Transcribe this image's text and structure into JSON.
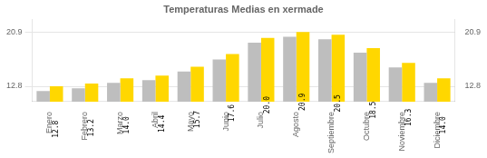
{
  "chart_data": {
    "type": "bar",
    "title": "Temperaturas Medias en xermade",
    "categories": [
      "Enero",
      "Febrero",
      "Marzo",
      "Abril",
      "Mayo",
      "Junio",
      "Julio",
      "Agosto",
      "Septiembre",
      "Octubre",
      "Noviembre",
      "Diciembre"
    ],
    "series": [
      {
        "color": "#BEBEBE",
        "values": [
          12.1,
          12.5,
          13.3,
          13.7,
          15.0,
          16.8,
          19.3,
          20.2,
          19.8,
          17.8,
          15.6,
          13.3
        ]
      },
      {
        "color": "#FFD700",
        "data_labels": true,
        "values": [
          12.8,
          13.2,
          14.0,
          14.4,
          15.7,
          17.6,
          20.0,
          20.9,
          20.5,
          18.5,
          16.3,
          14.0
        ],
        "value_labels": [
          "12.8",
          "13.2",
          "14.0",
          "14.4",
          "15.7",
          "17.6",
          "20.0",
          "20.9",
          "20.5",
          "18.5",
          "16.3",
          "14.0"
        ]
      }
    ],
    "ylim": [
      10.5,
      22.8
    ],
    "yticks": [
      12.8,
      20.9
    ],
    "y2lim": [
      10.5,
      22.8
    ],
    "y2ticks": [
      12.8,
      20.9
    ],
    "grid": true
  }
}
